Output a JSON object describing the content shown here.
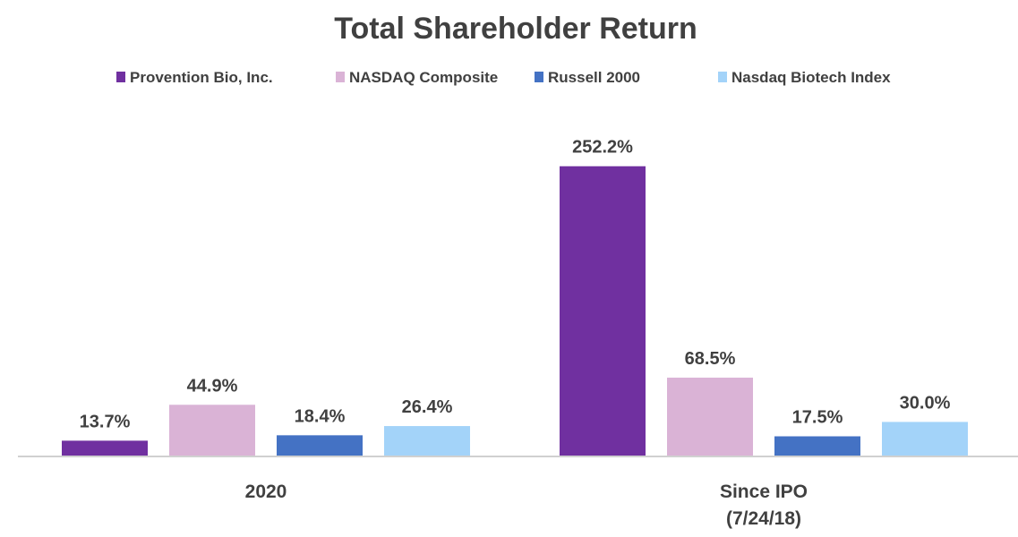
{
  "chart_data": {
    "type": "bar",
    "title": "Total Shareholder Return",
    "categories": [
      "2020",
      "Since IPO\n(7/24/18)"
    ],
    "series": [
      {
        "name": "Provention Bio, Inc.",
        "color": "#7030a0",
        "values": [
          13.7,
          252.2
        ],
        "labels": [
          "13.7%",
          "252.2%"
        ]
      },
      {
        "name": "NASDAQ Composite",
        "color": "#dab3d6",
        "values": [
          44.9,
          68.5
        ],
        "labels": [
          "44.9%",
          "68.5%"
        ]
      },
      {
        "name": "Russell 2000",
        "color": "#4472c4",
        "values": [
          18.4,
          17.5
        ],
        "labels": [
          "18.4%",
          "17.5%"
        ]
      },
      {
        "name": "Nasdaq Biotech Index",
        "color": "#a3d3f9",
        "values": [
          26.4,
          30.0
        ],
        "labels": [
          "26.4%",
          "30.0%"
        ]
      }
    ],
    "ylim": [
      0,
      280
    ],
    "grid": false,
    "legend": "top",
    "xlabel": "",
    "ylabel": ""
  }
}
